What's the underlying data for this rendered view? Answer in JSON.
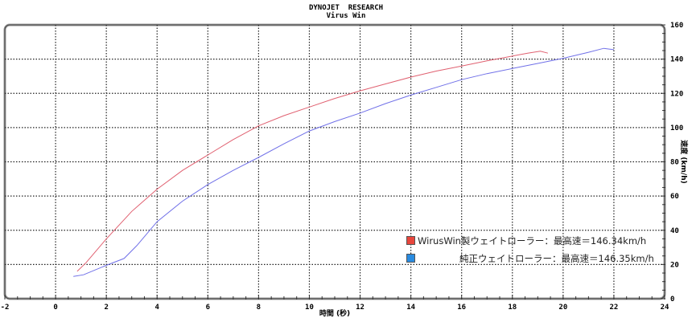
{
  "chart_data": {
    "type": "line",
    "title": "DYNOJET  RESEARCH",
    "subtitle": "Virus Win",
    "xlabel": "時間 (秒)",
    "ylabel": "速度 (km/h)",
    "xlim": [
      -2,
      24
    ],
    "ylim": [
      0,
      160
    ],
    "xticks": [
      -2,
      0,
      2,
      4,
      6,
      8,
      10,
      12,
      14,
      16,
      18,
      20,
      22,
      24
    ],
    "yticks": [
      0,
      20,
      40,
      60,
      80,
      100,
      120,
      140,
      160
    ],
    "grid": true,
    "legend_position": "bottom-right",
    "series": [
      {
        "name": "WirusWin製ウェイトローラー：最高速＝146.34km/h",
        "color": "#e06070",
        "x": [
          0.85,
          1.2,
          2,
          3,
          4,
          5,
          6,
          7,
          8,
          9,
          10,
          11,
          12,
          13,
          14,
          15,
          16,
          17,
          18,
          18.6,
          19.1,
          19.4
        ],
        "y": [
          16,
          21,
          35,
          51,
          64,
          75,
          84,
          93,
          101,
          107,
          112,
          117,
          121.5,
          125.5,
          129.5,
          133,
          136,
          139,
          141.8,
          143.5,
          144.6,
          143.5
        ]
      },
      {
        "name": "純正ウェイトローラー：最高速＝146.35km/h",
        "color": "#7070e8",
        "x": [
          0.7,
          1.1,
          2,
          2.7,
          3.2,
          4,
          5,
          6,
          7,
          8,
          9,
          10,
          11,
          12,
          13,
          14,
          15,
          16,
          17,
          18,
          19,
          20,
          21,
          21.6,
          22
        ],
        "y": [
          13,
          14,
          19.5,
          23.5,
          31,
          45,
          57,
          66.7,
          75,
          82.6,
          90.5,
          98,
          103.5,
          108.5,
          114,
          119,
          123.5,
          128,
          131.5,
          134.5,
          137.5,
          140.5,
          144,
          146.3,
          145.5
        ]
      }
    ]
  }
}
